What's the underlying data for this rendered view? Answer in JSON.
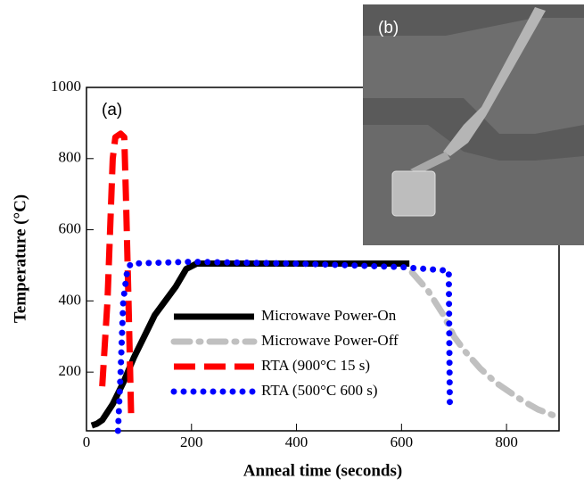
{
  "chart_data": {
    "type": "line",
    "xlabel": "Anneal time (seconds)",
    "ylabel": "Temperature (°C)",
    "panel_label": "(a)",
    "inset_label": "(b)",
    "xlim": [
      0,
      900
    ],
    "xticks": [
      0,
      200,
      400,
      600,
      800
    ],
    "ylim": [
      35,
      1000
    ],
    "yticks": [
      200,
      400,
      600,
      800,
      1000
    ],
    "legend": "center",
    "series": [
      {
        "name": "Microwave Power-On",
        "color": "#000000",
        "dash": "solid",
        "x": [
          10,
          20,
          30,
          50,
          70,
          90,
          110,
          130,
          150,
          170,
          190,
          210,
          300,
          400,
          500,
          600,
          615
        ],
        "values": [
          50,
          55,
          65,
          110,
          170,
          240,
          300,
          360,
          400,
          440,
          490,
          505,
          505,
          505,
          505,
          505,
          505
        ]
      },
      {
        "name": "Microwave Power-Off",
        "color": "#c0c0c0",
        "dash": "dashdot",
        "x": [
          620,
          650,
          680,
          700,
          720,
          750,
          780,
          800,
          830,
          860,
          890,
          900
        ],
        "values": [
          480,
          430,
          360,
          300,
          260,
          210,
          170,
          150,
          120,
          95,
          78,
          75
        ]
      },
      {
        "name": "RTA (900°C 15 s)",
        "color": "#ff0000",
        "dash": "dashed",
        "x": [
          30,
          40,
          50,
          55,
          65,
          72,
          75,
          80,
          85
        ],
        "values": [
          160,
          400,
          800,
          860,
          870,
          860,
          700,
          400,
          80
        ]
      },
      {
        "name": "RTA (500°C 600 s)",
        "color": "#0000ff",
        "dash": "dotted",
        "x": [
          60,
          65,
          70,
          78,
          85,
          200,
          400,
          600,
          690,
          692
        ],
        "values": [
          35,
          200,
          400,
          490,
          505,
          510,
          505,
          495,
          485,
          110
        ]
      }
    ]
  }
}
